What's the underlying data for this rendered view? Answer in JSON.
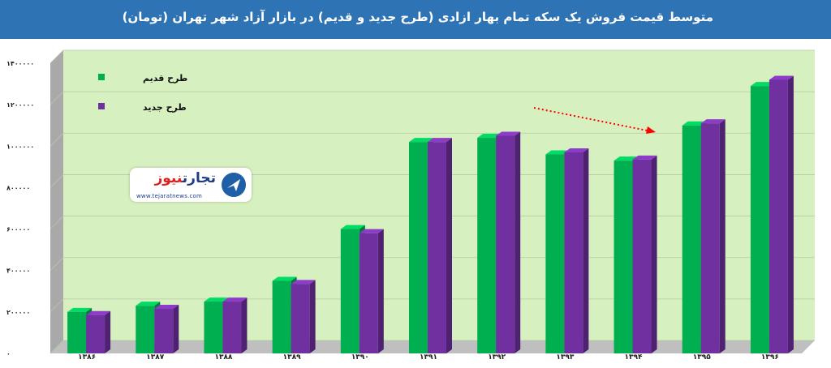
{
  "title": "متوسط قیمت فروش یک سکه تمام بهار ازادی (طرح جدید و قدیم) در بازار آزاد شهر تهران (تومان)",
  "logo": {
    "name_part1": "تجارت",
    "name_part2": "نیوز",
    "website": "www.tejaratnews.com"
  },
  "colors": {
    "title_bg": "#2e74b5",
    "plot_bg": "#d7f0c0",
    "old_design": "#00b050",
    "new_design": "#7030a0",
    "annotation_arrow": "#ff0000"
  },
  "chart_data": {
    "type": "bar",
    "title": "متوسط قیمت فروش یک سکه تمام بهار ازادی (طرح جدید و قدیم) در بازار آزاد شهر تهران (تومان)",
    "categories": [
      "۱۳۸۶",
      "۱۳۸۷",
      "۱۳۸۸",
      "۱۳۸۹",
      "۱۳۹۰",
      "۱۳۹۱",
      "۱۳۹۲",
      "۱۳۹۳",
      "۱۳۹۴",
      "۱۳۹۵",
      "۱۳۹۶"
    ],
    "series": [
      {
        "name": "طرح قدیم",
        "color": "#00b050",
        "values": [
          200000,
          230000,
          250000,
          350000,
          600000,
          1020000,
          1040000,
          960000,
          930000,
          1100000,
          1290000
        ]
      },
      {
        "name": "طرح جدید",
        "color": "#7030a0",
        "values": [
          185000,
          215000,
          250000,
          335000,
          580000,
          1020000,
          1050000,
          970000,
          935000,
          1110000,
          1320000
        ]
      }
    ],
    "ylim": [
      0,
      1400000
    ],
    "y_ticks": [
      0,
      200000,
      400000,
      600000,
      800000,
      1000000,
      1200000,
      1400000
    ],
    "y_tick_labels": [
      "۰",
      "۲۰۰۰۰۰",
      "۴۰۰۰۰۰",
      "۶۰۰۰۰۰",
      "۸۰۰۰۰۰",
      "۱۰۰۰۰۰۰",
      "۱۲۰۰۰۰۰",
      "۱۴۰۰۰۰۰"
    ],
    "xlabel": "",
    "ylabel": "",
    "grid": true,
    "legend": "top-left",
    "annotation": "dotted red arrow pointing down from ۱۳۹۳ toward ۱۳۹۴"
  }
}
